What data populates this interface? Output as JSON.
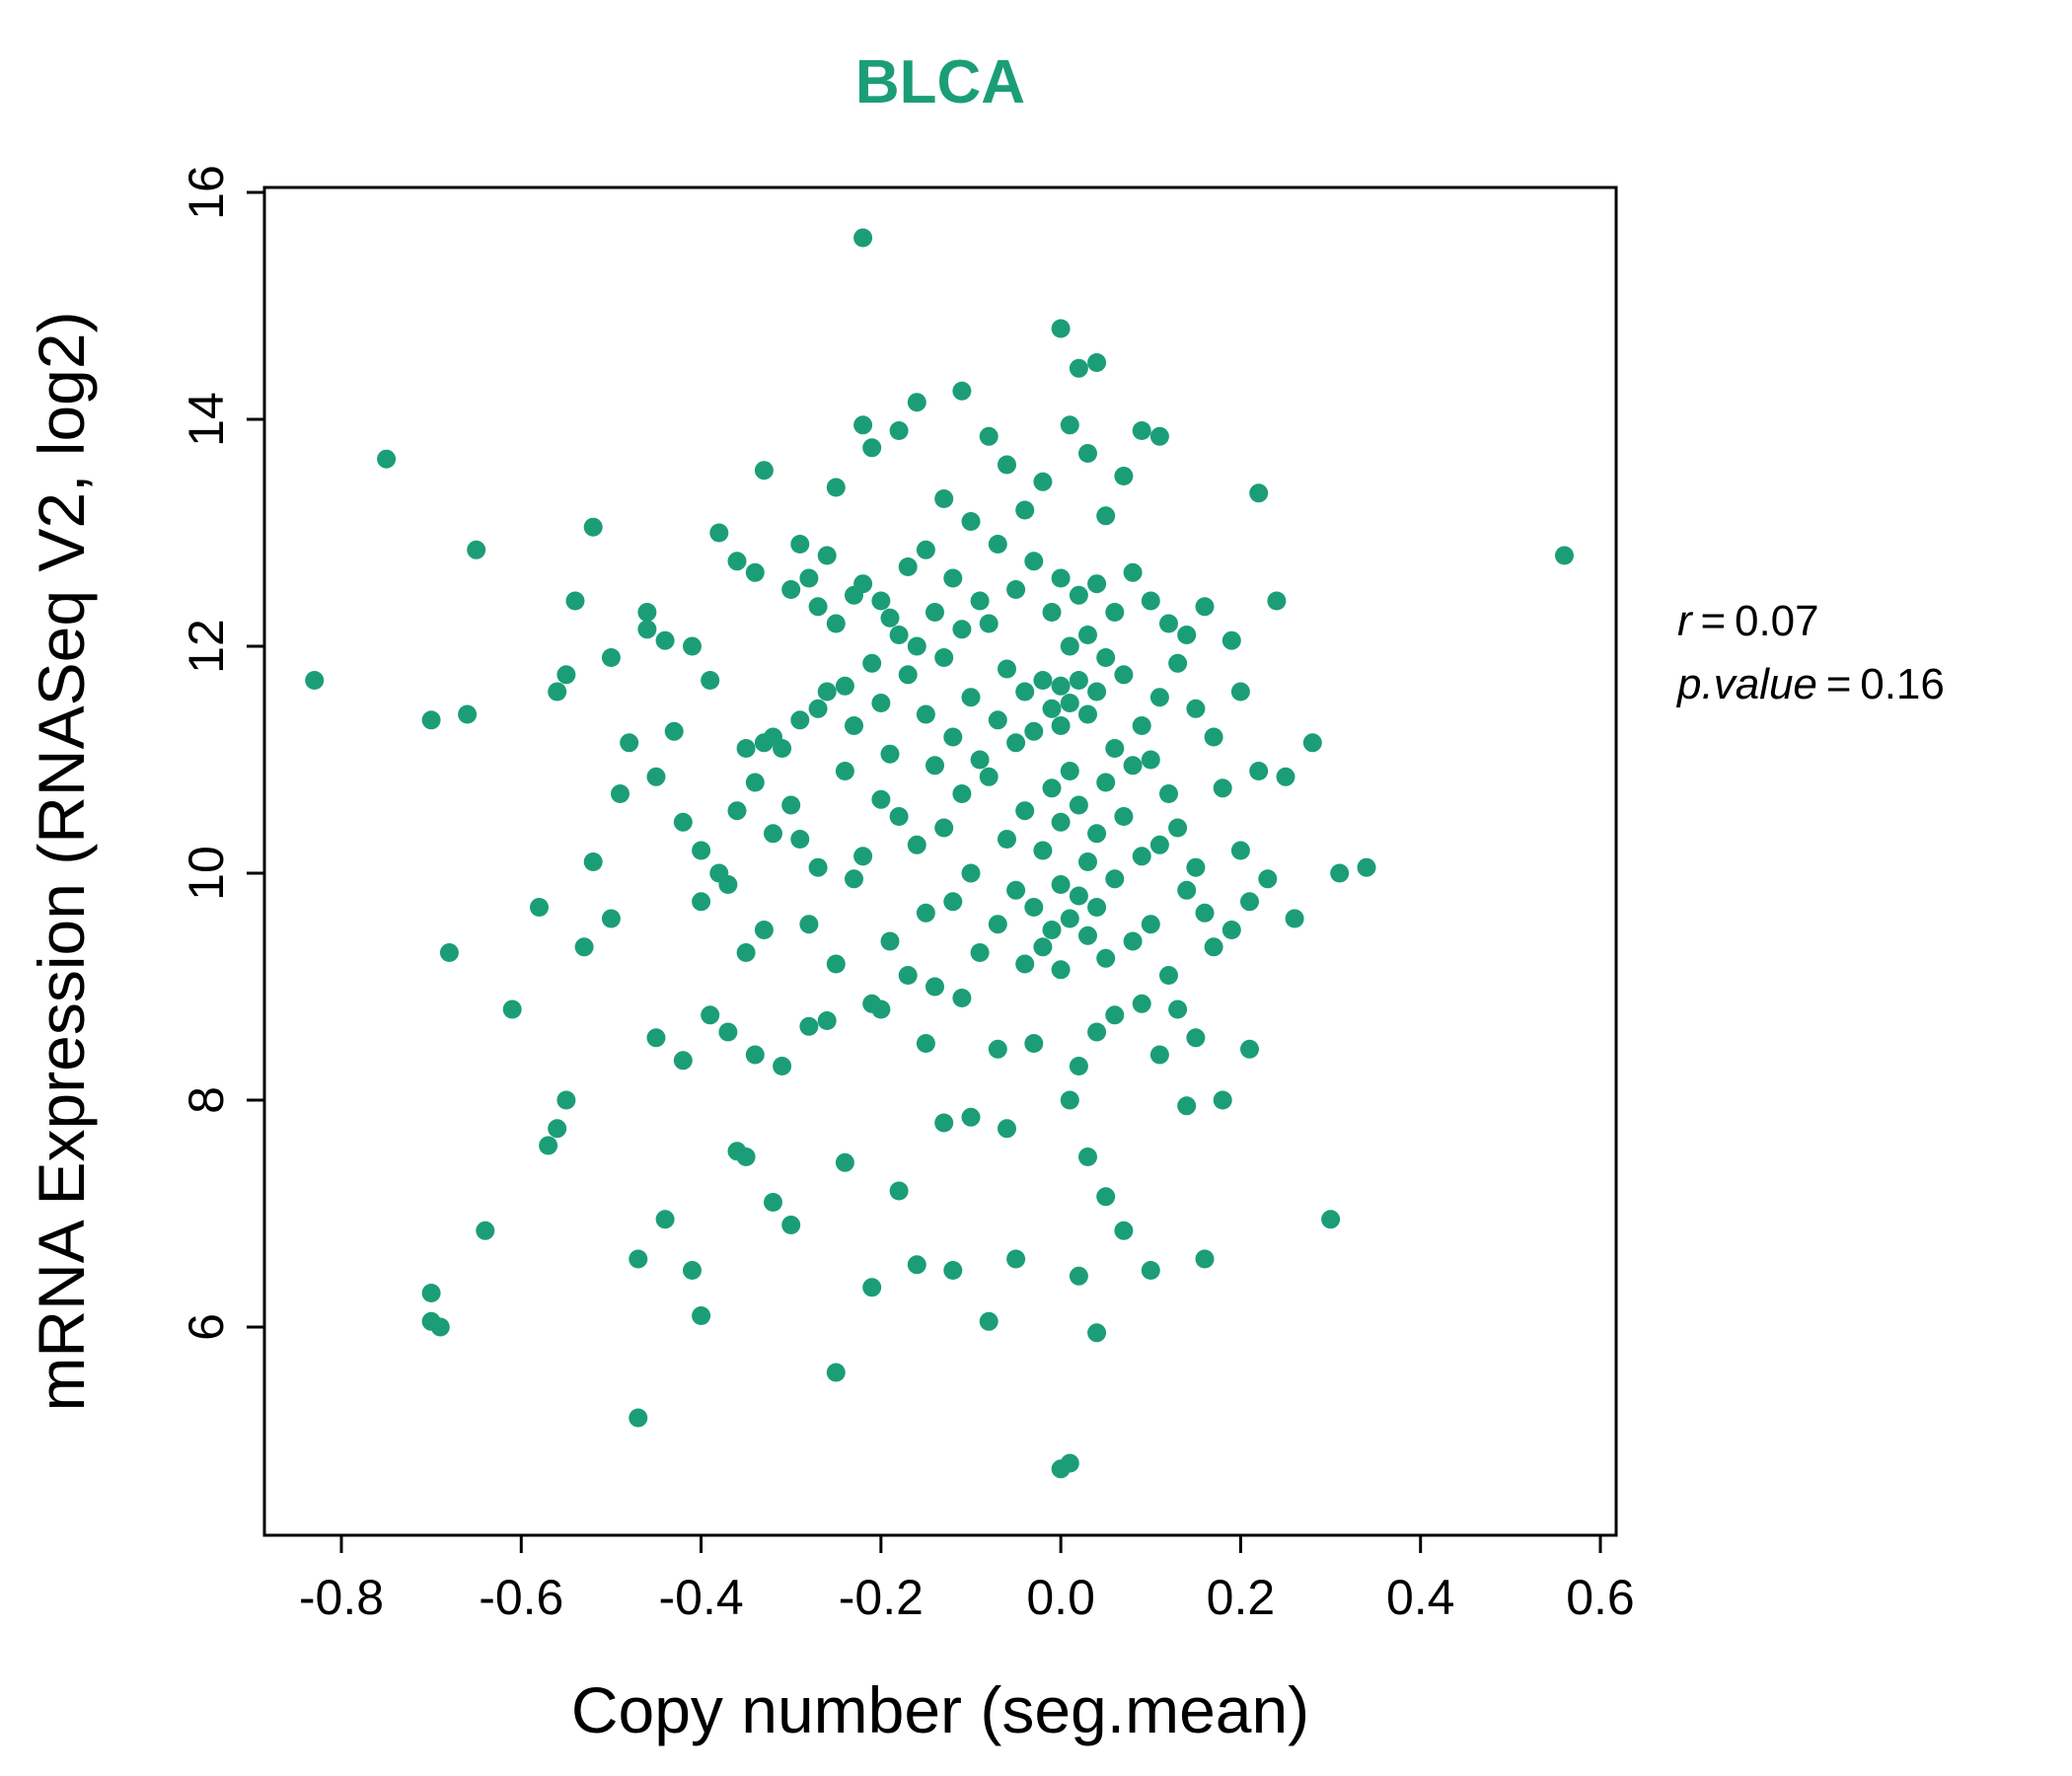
{
  "title": "BLCA",
  "title_color": "#1b9e77",
  "axes": {
    "x_label": "Copy number (seg.mean)",
    "y_label": "mRNA Expression (RNASeq V2, log2)"
  },
  "annotation": {
    "lines": [
      {
        "name": "r",
        "eq": "=",
        "value": "0.07"
      },
      {
        "name": "p.value",
        "eq": "=",
        "value": "0.16"
      }
    ]
  },
  "chart_data": {
    "type": "scatter",
    "title": "BLCA",
    "xlabel": "Copy number (seg.mean)",
    "ylabel": "mRNA Expression (RNASeq V2, log2)",
    "xlim": [
      -0.89,
      0.62
    ],
    "ylim": [
      4.15,
      16.05
    ],
    "grid": "off",
    "legend": "none",
    "point_color": "#1b9e77",
    "x_ticks": [
      "-0.8",
      "-0.6",
      "-0.4",
      "-0.2",
      "0.0",
      "0.2",
      "0.4",
      "0.6"
    ],
    "y_ticks": [
      "6",
      "8",
      "10",
      "12",
      "14",
      "16"
    ],
    "points": [
      [
        -0.83,
        11.7
      ],
      [
        -0.75,
        13.65
      ],
      [
        -0.7,
        11.35
      ],
      [
        -0.7,
        6.3
      ],
      [
        -0.7,
        6.05
      ],
      [
        -0.69,
        6.0
      ],
      [
        -0.68,
        9.3
      ],
      [
        -0.66,
        11.4
      ],
      [
        -0.65,
        12.85
      ],
      [
        -0.64,
        6.85
      ],
      [
        -0.61,
        8.8
      ],
      [
        -0.58,
        9.7
      ],
      [
        -0.57,
        7.6
      ],
      [
        -0.56,
        7.75
      ],
      [
        -0.56,
        11.6
      ],
      [
        -0.55,
        8.0
      ],
      [
        -0.55,
        11.75
      ],
      [
        -0.54,
        12.4
      ],
      [
        -0.53,
        9.35
      ],
      [
        -0.52,
        10.1
      ],
      [
        -0.52,
        13.05
      ],
      [
        -0.5,
        9.6
      ],
      [
        -0.5,
        11.9
      ],
      [
        -0.49,
        10.7
      ],
      [
        -0.48,
        11.15
      ],
      [
        -0.47,
        5.2
      ],
      [
        -0.47,
        6.6
      ],
      [
        -0.46,
        12.3
      ],
      [
        -0.46,
        12.15
      ],
      [
        -0.45,
        8.55
      ],
      [
        -0.45,
        10.85
      ],
      [
        -0.44,
        12.05
      ],
      [
        -0.44,
        6.95
      ],
      [
        -0.43,
        11.25
      ],
      [
        -0.42,
        8.35
      ],
      [
        -0.42,
        10.45
      ],
      [
        -0.41,
        6.5
      ],
      [
        -0.41,
        12.0
      ],
      [
        -0.4,
        10.2
      ],
      [
        -0.4,
        9.75
      ],
      [
        -0.4,
        6.1
      ],
      [
        -0.39,
        11.7
      ],
      [
        -0.39,
        8.75
      ],
      [
        -0.38,
        10.0
      ],
      [
        -0.38,
        13.0
      ],
      [
        -0.37,
        8.6
      ],
      [
        -0.37,
        9.9
      ],
      [
        -0.36,
        12.75
      ],
      [
        -0.36,
        10.55
      ],
      [
        -0.36,
        7.55
      ],
      [
        -0.35,
        9.3
      ],
      [
        -0.35,
        11.1
      ],
      [
        -0.35,
        7.5
      ],
      [
        -0.34,
        10.8
      ],
      [
        -0.34,
        12.65
      ],
      [
        -0.34,
        8.4
      ],
      [
        -0.33,
        11.15
      ],
      [
        -0.33,
        13.55
      ],
      [
        -0.33,
        9.5
      ],
      [
        -0.32,
        11.2
      ],
      [
        -0.32,
        10.35
      ],
      [
        -0.32,
        7.1
      ],
      [
        -0.31,
        11.1
      ],
      [
        -0.31,
        8.3
      ],
      [
        -0.3,
        12.5
      ],
      [
        -0.3,
        10.6
      ],
      [
        -0.3,
        6.9
      ],
      [
        -0.29,
        11.35
      ],
      [
        -0.29,
        12.9
      ],
      [
        -0.29,
        10.3
      ],
      [
        -0.28,
        12.6
      ],
      [
        -0.28,
        9.55
      ],
      [
        -0.28,
        8.65
      ],
      [
        -0.27,
        12.35
      ],
      [
        -0.27,
        11.45
      ],
      [
        -0.27,
        10.05
      ],
      [
        -0.26,
        12.8
      ],
      [
        -0.26,
        11.6
      ],
      [
        -0.26,
        8.7
      ],
      [
        -0.25,
        13.4
      ],
      [
        -0.25,
        12.2
      ],
      [
        -0.25,
        9.2
      ],
      [
        -0.25,
        5.6
      ],
      [
        -0.24,
        11.65
      ],
      [
        -0.24,
        10.9
      ],
      [
        -0.24,
        7.45
      ],
      [
        -0.23,
        12.45
      ],
      [
        -0.23,
        11.3
      ],
      [
        -0.23,
        9.95
      ],
      [
        -0.22,
        15.6
      ],
      [
        -0.22,
        13.95
      ],
      [
        -0.22,
        12.55
      ],
      [
        -0.22,
        10.15
      ],
      [
        -0.21,
        13.75
      ],
      [
        -0.21,
        11.85
      ],
      [
        -0.21,
        8.85
      ],
      [
        -0.21,
        6.35
      ],
      [
        -0.2,
        12.4
      ],
      [
        -0.2,
        11.5
      ],
      [
        -0.2,
        10.65
      ],
      [
        -0.2,
        8.8
      ],
      [
        -0.19,
        12.25
      ],
      [
        -0.19,
        11.05
      ],
      [
        -0.19,
        9.4
      ],
      [
        -0.18,
        13.9
      ],
      [
        -0.18,
        12.1
      ],
      [
        -0.18,
        10.5
      ],
      [
        -0.18,
        7.2
      ],
      [
        -0.17,
        12.7
      ],
      [
        -0.17,
        11.75
      ],
      [
        -0.17,
        9.1
      ],
      [
        -0.16,
        14.15
      ],
      [
        -0.16,
        12.0
      ],
      [
        -0.16,
        10.25
      ],
      [
        -0.16,
        6.55
      ],
      [
        -0.15,
        12.85
      ],
      [
        -0.15,
        11.4
      ],
      [
        -0.15,
        9.65
      ],
      [
        -0.15,
        8.5
      ],
      [
        -0.14,
        12.3
      ],
      [
        -0.14,
        10.95
      ],
      [
        -0.14,
        9.0
      ],
      [
        -0.13,
        13.3
      ],
      [
        -0.13,
        11.9
      ],
      [
        -0.13,
        10.4
      ],
      [
        -0.13,
        7.8
      ],
      [
        -0.12,
        12.6
      ],
      [
        -0.12,
        11.2
      ],
      [
        -0.12,
        9.75
      ],
      [
        -0.12,
        6.5
      ],
      [
        -0.11,
        14.25
      ],
      [
        -0.11,
        12.15
      ],
      [
        -0.11,
        10.7
      ],
      [
        -0.11,
        8.9
      ],
      [
        -0.1,
        13.1
      ],
      [
        -0.1,
        11.55
      ],
      [
        -0.1,
        10.0
      ],
      [
        -0.1,
        7.85
      ],
      [
        -0.09,
        12.4
      ],
      [
        -0.09,
        11.0
      ],
      [
        -0.09,
        9.3
      ],
      [
        -0.08,
        13.85
      ],
      [
        -0.08,
        12.2
      ],
      [
        -0.08,
        10.85
      ],
      [
        -0.08,
        6.05
      ],
      [
        -0.07,
        12.9
      ],
      [
        -0.07,
        11.35
      ],
      [
        -0.07,
        9.55
      ],
      [
        -0.07,
        8.45
      ],
      [
        -0.06,
        13.6
      ],
      [
        -0.06,
        11.8
      ],
      [
        -0.06,
        10.3
      ],
      [
        -0.06,
        7.75
      ],
      [
        -0.05,
        12.5
      ],
      [
        -0.05,
        11.15
      ],
      [
        -0.05,
        9.85
      ],
      [
        -0.05,
        6.6
      ],
      [
        -0.04,
        13.2
      ],
      [
        -0.04,
        11.6
      ],
      [
        -0.04,
        10.55
      ],
      [
        -0.04,
        9.2
      ],
      [
        -0.03,
        12.75
      ],
      [
        -0.03,
        11.25
      ],
      [
        -0.03,
        9.7
      ],
      [
        -0.03,
        8.5
      ],
      [
        -0.02,
        13.45
      ],
      [
        -0.02,
        11.7
      ],
      [
        -0.02,
        10.2
      ],
      [
        -0.02,
        9.35
      ],
      [
        -0.01,
        12.3
      ],
      [
        -0.01,
        11.45
      ],
      [
        -0.01,
        10.75
      ],
      [
        -0.01,
        9.5
      ],
      [
        0.0,
        14.8
      ],
      [
        0.0,
        12.6
      ],
      [
        0.0,
        11.65
      ],
      [
        0.0,
        11.3
      ],
      [
        0.0,
        10.45
      ],
      [
        0.0,
        9.9
      ],
      [
        0.0,
        9.15
      ],
      [
        0.0,
        4.75
      ],
      [
        0.01,
        13.95
      ],
      [
        0.01,
        12.0
      ],
      [
        0.01,
        11.5
      ],
      [
        0.01,
        10.9
      ],
      [
        0.01,
        9.6
      ],
      [
        0.01,
        8.0
      ],
      [
        0.01,
        4.8
      ],
      [
        0.02,
        14.45
      ],
      [
        0.02,
        12.45
      ],
      [
        0.02,
        11.7
      ],
      [
        0.02,
        10.6
      ],
      [
        0.02,
        9.8
      ],
      [
        0.02,
        8.3
      ],
      [
        0.02,
        6.45
      ],
      [
        0.03,
        13.7
      ],
      [
        0.03,
        12.1
      ],
      [
        0.03,
        11.4
      ],
      [
        0.03,
        10.1
      ],
      [
        0.03,
        9.45
      ],
      [
        0.03,
        7.5
      ],
      [
        0.04,
        14.5
      ],
      [
        0.04,
        12.55
      ],
      [
        0.04,
        11.6
      ],
      [
        0.04,
        10.35
      ],
      [
        0.04,
        9.7
      ],
      [
        0.04,
        8.6
      ],
      [
        0.04,
        5.95
      ],
      [
        0.05,
        13.15
      ],
      [
        0.05,
        11.9
      ],
      [
        0.05,
        10.8
      ],
      [
        0.05,
        9.25
      ],
      [
        0.05,
        7.15
      ],
      [
        0.06,
        12.3
      ],
      [
        0.06,
        11.1
      ],
      [
        0.06,
        9.95
      ],
      [
        0.06,
        8.75
      ],
      [
        0.07,
        13.5
      ],
      [
        0.07,
        11.75
      ],
      [
        0.07,
        10.5
      ],
      [
        0.07,
        6.85
      ],
      [
        0.08,
        12.65
      ],
      [
        0.08,
        10.95
      ],
      [
        0.08,
        9.4
      ],
      [
        0.09,
        13.9
      ],
      [
        0.09,
        11.3
      ],
      [
        0.09,
        10.15
      ],
      [
        0.09,
        8.85
      ],
      [
        0.1,
        12.4
      ],
      [
        0.1,
        11.0
      ],
      [
        0.1,
        9.55
      ],
      [
        0.1,
        6.5
      ],
      [
        0.11,
        13.85
      ],
      [
        0.11,
        11.55
      ],
      [
        0.11,
        10.25
      ],
      [
        0.11,
        8.4
      ],
      [
        0.12,
        12.2
      ],
      [
        0.12,
        10.7
      ],
      [
        0.12,
        9.1
      ],
      [
        0.13,
        11.85
      ],
      [
        0.13,
        10.4
      ],
      [
        0.13,
        8.8
      ],
      [
        0.14,
        12.1
      ],
      [
        0.14,
        9.85
      ],
      [
        0.14,
        7.95
      ],
      [
        0.15,
        11.45
      ],
      [
        0.15,
        10.05
      ],
      [
        0.15,
        8.55
      ],
      [
        0.16,
        12.35
      ],
      [
        0.16,
        9.65
      ],
      [
        0.16,
        6.6
      ],
      [
        0.17,
        11.2
      ],
      [
        0.17,
        9.35
      ],
      [
        0.18,
        10.75
      ],
      [
        0.18,
        8.0
      ],
      [
        0.19,
        12.05
      ],
      [
        0.19,
        9.5
      ],
      [
        0.2,
        11.6
      ],
      [
        0.2,
        10.2
      ],
      [
        0.21,
        9.75
      ],
      [
        0.21,
        8.45
      ],
      [
        0.22,
        13.35
      ],
      [
        0.22,
        10.9
      ],
      [
        0.23,
        9.95
      ],
      [
        0.24,
        12.4
      ],
      [
        0.25,
        10.85
      ],
      [
        0.26,
        9.6
      ],
      [
        0.28,
        11.15
      ],
      [
        0.3,
        6.95
      ],
      [
        0.31,
        10.0
      ],
      [
        0.34,
        10.05
      ],
      [
        0.56,
        12.8
      ]
    ]
  }
}
